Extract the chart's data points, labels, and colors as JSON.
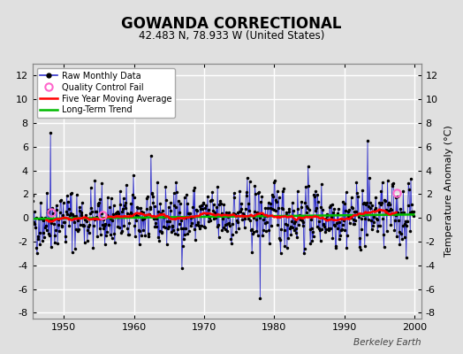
{
  "title": "GOWANDA CORRECTIONAL",
  "subtitle": "42.483 N, 78.933 W (United States)",
  "ylabel": "Temperature Anomaly (°C)",
  "watermark": "Berkeley Earth",
  "xlim": [
    1945.5,
    2001.0
  ],
  "ylim": [
    -8.5,
    13.0
  ],
  "yticks": [
    -8,
    -6,
    -4,
    -2,
    0,
    2,
    4,
    6,
    8,
    10,
    12
  ],
  "xticks": [
    1950,
    1960,
    1970,
    1980,
    1990,
    2000
  ],
  "bg_color": "#e0e0e0",
  "plot_bg_color": "#e0e0e0",
  "grid_color": "white",
  "line_color": "#3333cc",
  "dot_color": "black",
  "moving_avg_color": "red",
  "trend_color": "#00bb00",
  "qc_fail_color": "#ff66cc",
  "start_year": 1945,
  "end_year": 2000,
  "seed": 42,
  "moving_avg_window": 60,
  "qc_fail_points": [
    [
      1948.25,
      0.45
    ],
    [
      1955.5,
      0.2
    ],
    [
      1997.5,
      2.1
    ]
  ]
}
